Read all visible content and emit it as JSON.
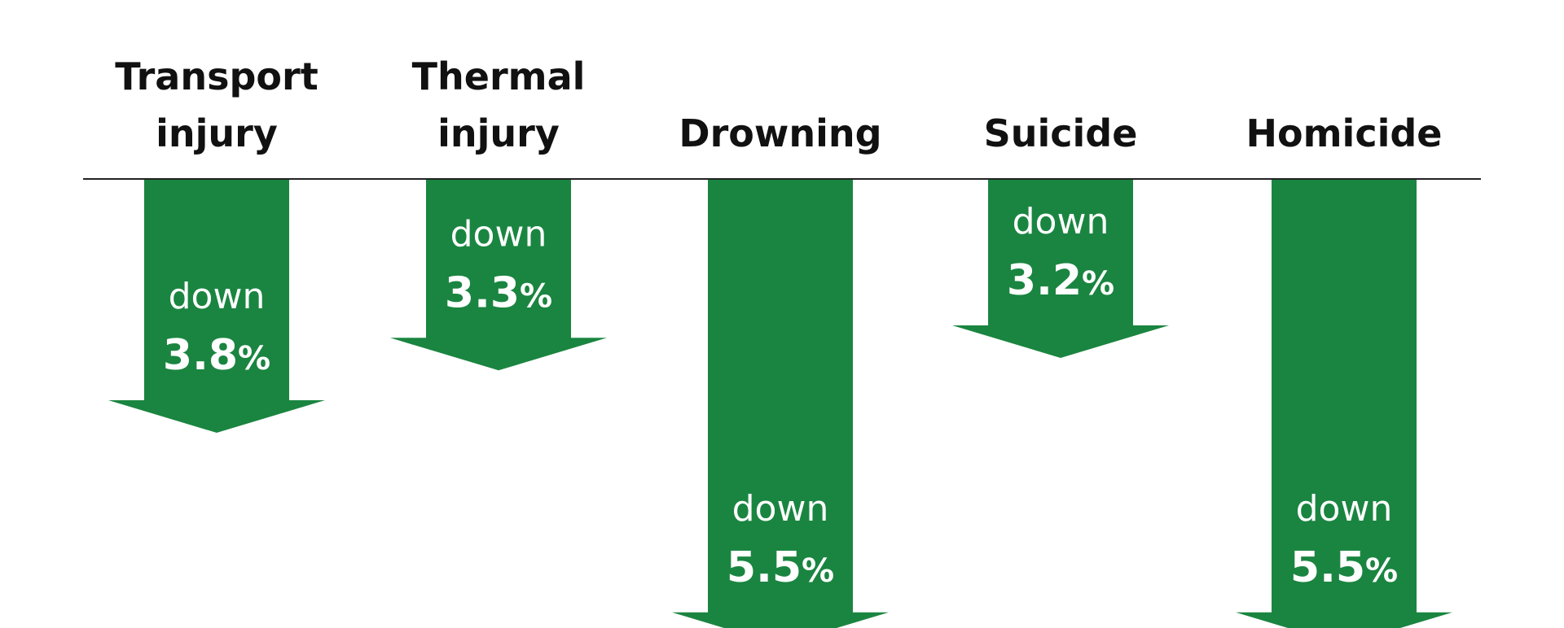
{
  "chart_data": {
    "type": "bar",
    "orientation": "downward-arrows",
    "categories": [
      [
        "Transport",
        "injury"
      ],
      [
        "Thermal",
        "injury"
      ],
      [
        "Drowning"
      ],
      [
        "Suicide"
      ],
      [
        "Homicide"
      ]
    ],
    "series": [
      {
        "values": [
          3.8,
          3.3,
          5.5,
          3.2,
          5.5
        ]
      }
    ],
    "direction_word": "down",
    "value_labels": [
      "3.8",
      "3.3",
      "5.5",
      "3.2",
      "5.5"
    ],
    "unit": "%",
    "colors": {
      "arrow": "#1a8540",
      "axis_line": "#222222",
      "text": "#111111",
      "arrow_text": "#ffffff"
    }
  }
}
